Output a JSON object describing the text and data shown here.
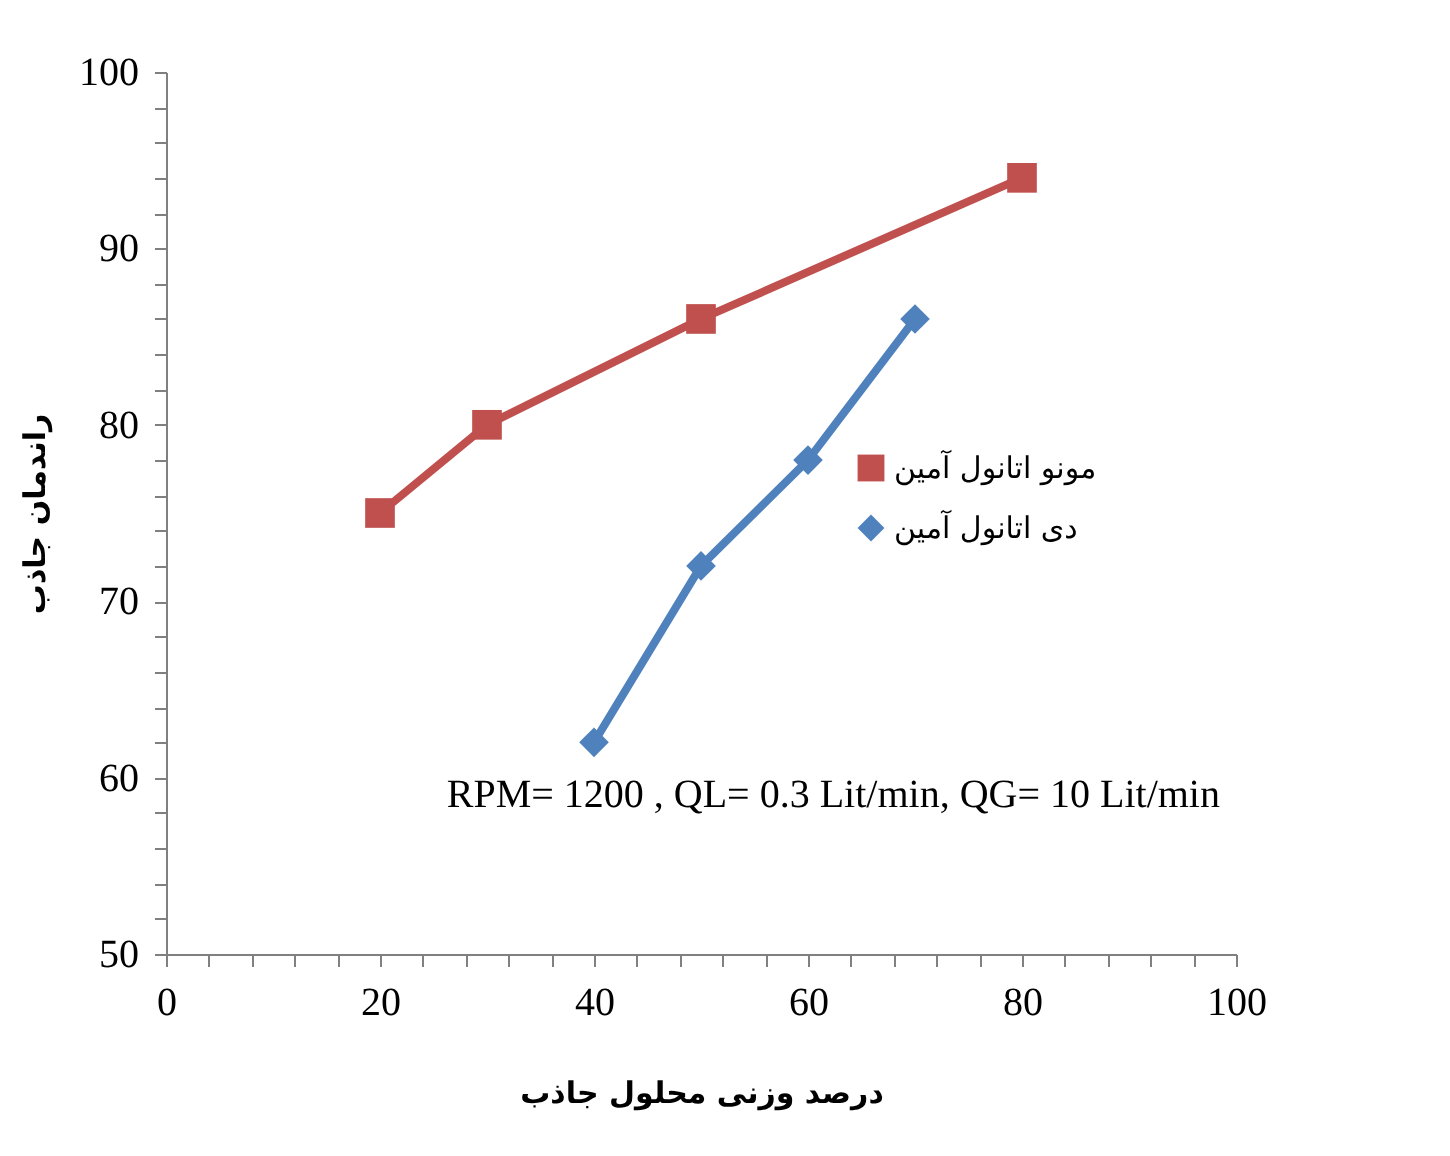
{
  "chart_data": {
    "type": "line",
    "xlabel": "درصد وزنی محلول جاذب",
    "ylabel": "راندمان جاذب",
    "xlim": [
      0,
      100
    ],
    "ylim": [
      50,
      100
    ],
    "xticks": [
      0,
      {
        "value": 4,
        "label": null
      },
      {
        "value": 8,
        "label": null
      },
      {
        "value": 12,
        "label": null
      },
      {
        "value": 16,
        "label": null
      },
      20,
      {
        "value": 24,
        "label": null
      },
      {
        "value": 28,
        "label": null
      },
      {
        "value": 32,
        "label": null
      },
      {
        "value": 36,
        "label": null
      },
      40,
      {
        "value": 44,
        "label": null
      },
      {
        "value": 48,
        "label": null
      },
      {
        "value": 52,
        "label": null
      },
      {
        "value": 56,
        "label": null
      },
      60,
      {
        "value": 64,
        "label": null
      },
      {
        "value": 68,
        "label": null
      },
      {
        "value": 72,
        "label": null
      },
      {
        "value": 76,
        "label": null
      },
      80,
      {
        "value": 84,
        "label": null
      },
      {
        "value": 88,
        "label": null
      },
      {
        "value": 92,
        "label": null
      },
      {
        "value": 96,
        "label": null
      },
      100
    ],
    "yticks": [
      50,
      {
        "value": 52,
        "label": null
      },
      {
        "value": 54,
        "label": null
      },
      {
        "value": 56,
        "label": null
      },
      {
        "value": 58,
        "label": null
      },
      60,
      {
        "value": 62,
        "label": null
      },
      {
        "value": 64,
        "label": null
      },
      {
        "value": 66,
        "label": null
      },
      {
        "value": 68,
        "label": null
      },
      70,
      {
        "value": 72,
        "label": null
      },
      {
        "value": 74,
        "label": null
      },
      {
        "value": 76,
        "label": null
      },
      {
        "value": 78,
        "label": null
      },
      80,
      {
        "value": 82,
        "label": null
      },
      {
        "value": 84,
        "label": null
      },
      {
        "value": 86,
        "label": null
      },
      {
        "value": 88,
        "label": null
      },
      90,
      {
        "value": 92,
        "label": null
      },
      {
        "value": 94,
        "label": null
      },
      {
        "value": 96,
        "label": null
      },
      {
        "value": 98,
        "label": null
      },
      100
    ],
    "grid": false,
    "legend": "right",
    "line_style": "solid",
    "annotations": [
      "RPM= 1200 , QL= 0.3 Lit/min, QG= 10 Lit/min"
    ],
    "series": [
      {
        "name": "مونو اتانول آمین",
        "color": "#c0504d",
        "marker": "square",
        "x": [
          20,
          30,
          50,
          80
        ],
        "values": [
          75,
          80,
          86,
          94
        ]
      },
      {
        "name": "دی اتانول آمین",
        "color": "#4f81bd",
        "marker": "diamond",
        "x": [
          40,
          50,
          60,
          70
        ],
        "values": [
          62,
          72,
          78,
          86
        ]
      }
    ]
  }
}
